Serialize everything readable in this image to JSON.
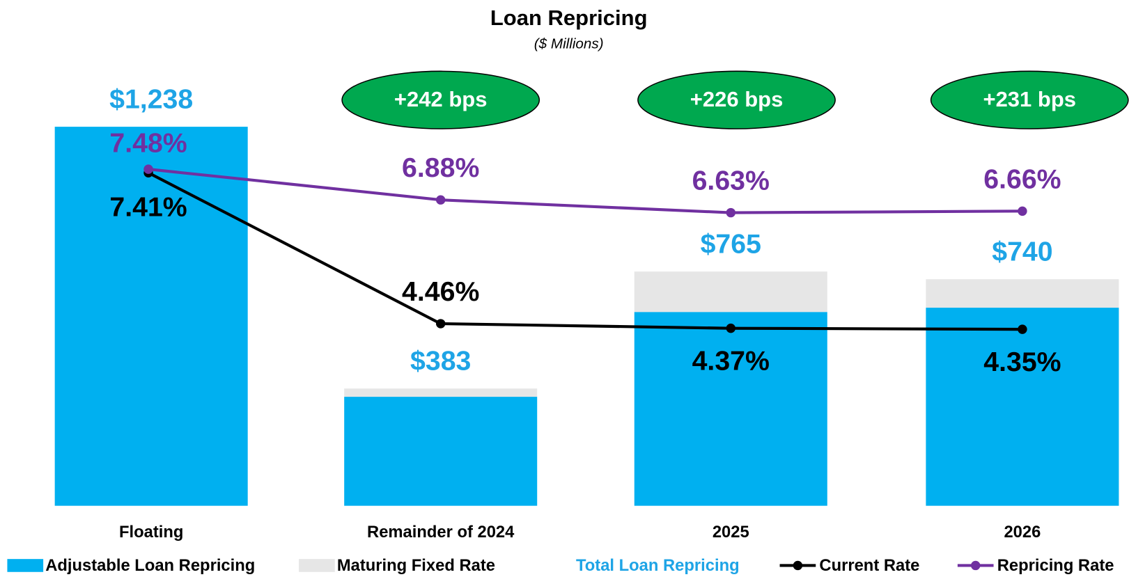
{
  "chart_data": {
    "type": "bar",
    "title": "Loan Repricing",
    "subtitle": "($ Millions)",
    "categories": [
      "Floating",
      "Remainder of 2024",
      "2025",
      "2026"
    ],
    "ylim": [
      0,
      1370
    ],
    "y2lim": [
      0.9,
      9.1
    ],
    "annotations": [
      "+242 bps",
      "+226 bps",
      "+231 bps"
    ],
    "series": [
      {
        "name": "Adjustable Loan Repricing",
        "type": "bar",
        "color": "#00b0f0",
        "values": [
          1238,
          356,
          633,
          647
        ]
      },
      {
        "name": "Maturing Fixed Rate",
        "type": "bar",
        "color": "#e6e6e6",
        "values": [
          0,
          27,
          132,
          93
        ]
      },
      {
        "name": "Total Loan Repricing",
        "type": "label",
        "color": "#1ea4e6",
        "values": [
          1238,
          383,
          765,
          740
        ],
        "value_labels": [
          "$1,238",
          "$383",
          "$765",
          "$740"
        ]
      },
      {
        "name": "Current Rate",
        "type": "line",
        "axis": "y2",
        "color": "#000000",
        "values": [
          7.41,
          4.46,
          4.37,
          4.35
        ],
        "value_labels": [
          "7.41%",
          "4.46%",
          "4.37%",
          "4.35%"
        ]
      },
      {
        "name": "Repricing Rate",
        "type": "line",
        "axis": "y2",
        "color": "#7030a0",
        "values": [
          7.48,
          6.88,
          6.63,
          6.66
        ],
        "value_labels": [
          "7.48%",
          "6.88%",
          "6.63%",
          "6.66%"
        ]
      }
    ]
  }
}
